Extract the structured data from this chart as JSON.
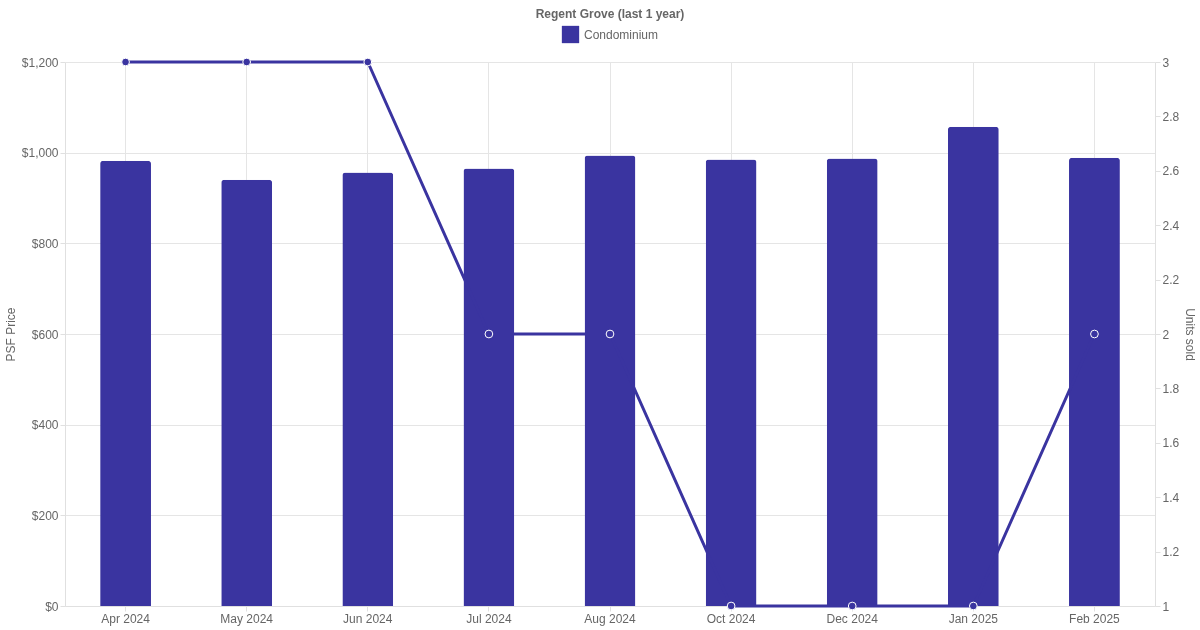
{
  "chart_data": {
    "type": "bar",
    "title": "Regent Grove (last 1 year)",
    "categories": [
      "Apr 2024",
      "May 2024",
      "Jun 2024",
      "Jul 2024",
      "Aug 2024",
      "Oct 2024",
      "Dec 2024",
      "Jan 2025",
      "Feb 2025"
    ],
    "series": [
      {
        "name": "Condominium",
        "type": "bar",
        "color": "#3a34a0",
        "values": [
          982,
          940,
          956,
          965,
          994,
          985,
          987,
          1057,
          989
        ]
      },
      {
        "type": "line",
        "axis": "y2",
        "color": "#3a34a0",
        "marker": "circle",
        "values": [
          3,
          3,
          3,
          2,
          2,
          1,
          1,
          1,
          2
        ]
      }
    ],
    "ylabel": "PSF Price",
    "y2label": "Units sold",
    "ylim": [
      0,
      1200
    ],
    "yticks": [
      {
        "value": 0,
        "label": "$0"
      },
      {
        "value": 200,
        "label": "$200"
      },
      {
        "value": 400,
        "label": "$400"
      },
      {
        "value": 600,
        "label": "$600"
      },
      {
        "value": 800,
        "label": "$800"
      },
      {
        "value": 1000,
        "label": "$1,000"
      },
      {
        "value": 1200,
        "label": "$1,200"
      }
    ],
    "y2lim": [
      1,
      3
    ],
    "y2ticks": [
      1,
      1.2,
      1.4,
      1.6,
      1.8,
      2,
      2.2,
      2.4,
      2.6,
      2.8,
      3
    ],
    "grid": true,
    "legend": "top"
  }
}
